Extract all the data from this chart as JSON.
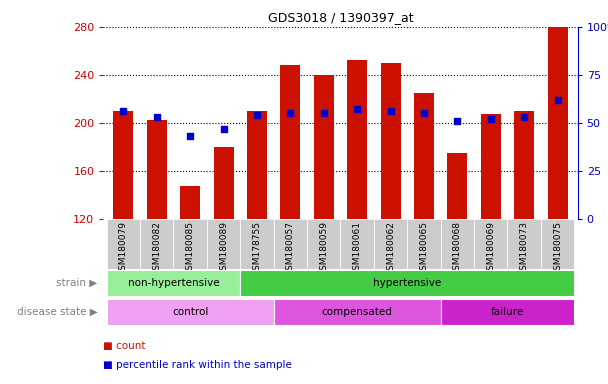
{
  "title": "GDS3018 / 1390397_at",
  "samples": [
    "GSM180079",
    "GSM180082",
    "GSM180085",
    "GSM180089",
    "GSM178755",
    "GSM180057",
    "GSM180059",
    "GSM180061",
    "GSM180062",
    "GSM180065",
    "GSM180068",
    "GSM180069",
    "GSM180073",
    "GSM180075"
  ],
  "counts": [
    210,
    202,
    147,
    180,
    210,
    248,
    240,
    252,
    250,
    225,
    175,
    207,
    210,
    280
  ],
  "percentile_ranks": [
    56,
    53,
    43,
    47,
    54,
    55,
    55,
    57,
    56,
    55,
    51,
    52,
    53,
    62
  ],
  "ymin": 120,
  "ymax": 280,
  "yticks": [
    120,
    160,
    200,
    240,
    280
  ],
  "y2ticks": [
    0,
    25,
    50,
    75,
    100
  ],
  "y2tick_labels": [
    "0",
    "25",
    "50",
    "75",
    "100%"
  ],
  "bar_color": "#cc1100",
  "dot_color": "#0000cc",
  "strain_groups": [
    {
      "label": "non-hypertensive",
      "start": 0,
      "end": 4,
      "color": "#99ee99"
    },
    {
      "label": "hypertensive",
      "start": 4,
      "end": 14,
      "color": "#44cc44"
    }
  ],
  "disease_groups": [
    {
      "label": "control",
      "start": 0,
      "end": 5,
      "color": "#f0a0f0"
    },
    {
      "label": "compensated",
      "start": 5,
      "end": 10,
      "color": "#dd55dd"
    },
    {
      "label": "failure",
      "start": 10,
      "end": 14,
      "color": "#cc22cc"
    }
  ],
  "legend_count_color": "#cc1100",
  "legend_dot_color": "#0000cc",
  "tick_bg_color": "#cccccc",
  "left_axis_color": "#cc0000",
  "right_axis_color": "#0000cc",
  "fig_width": 6.08,
  "fig_height": 3.84,
  "dpi": 100
}
